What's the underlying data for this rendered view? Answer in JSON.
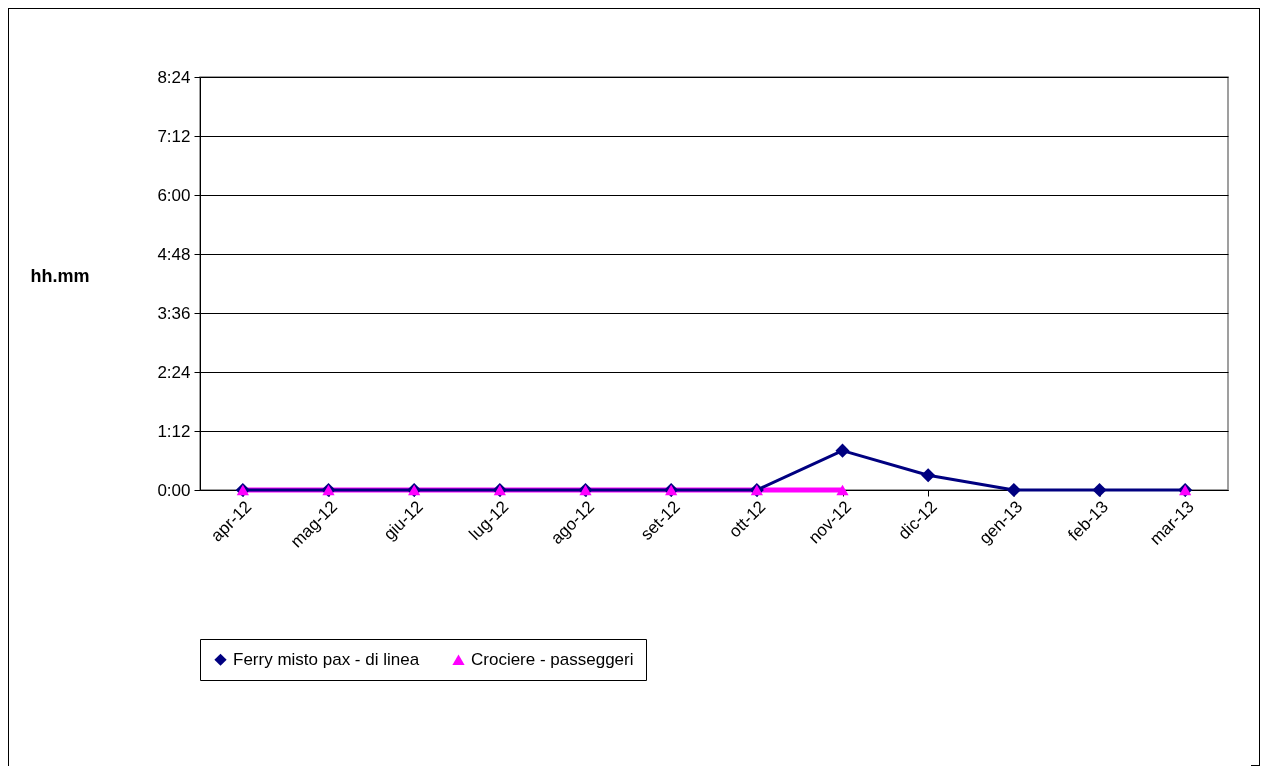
{
  "chart_data": {
    "type": "line",
    "ylabel": "hh.mm",
    "categories": [
      "apr-12",
      "mag-12",
      "giu-12",
      "lug-12",
      "ago-12",
      "set-12",
      "ott-12",
      "nov-12",
      "dic-12",
      "gen-13",
      "feb-13",
      "mar-13"
    ],
    "series": [
      {
        "name": "Ferry misto pax - di linea",
        "color": "#000080",
        "marker": "diamond",
        "values": [
          0,
          0,
          0,
          0,
          0,
          0,
          0,
          0.8,
          0.3,
          0,
          0,
          0
        ]
      },
      {
        "name": "Crociere - passeggeri",
        "color": "#ff00ff",
        "marker": "triangle",
        "values": [
          0,
          0,
          0,
          0,
          0,
          0,
          0,
          0,
          null,
          null,
          null,
          0
        ]
      }
    ],
    "ylim": [
      0,
      8.4
    ],
    "yticks": [
      {
        "value": 0,
        "label": "0:00"
      },
      {
        "value": 1.2,
        "label": "1:12"
      },
      {
        "value": 2.4,
        "label": "2:24"
      },
      {
        "value": 3.6,
        "label": "3:36"
      },
      {
        "value": 4.8,
        "label": "4:48"
      },
      {
        "value": 6,
        "label": "6:00"
      },
      {
        "value": 7.2,
        "label": "7:12"
      },
      {
        "value": 8.4,
        "label": "8:24"
      }
    ],
    "grid": "y",
    "legend": "bottom",
    "line_style": "solid"
  }
}
